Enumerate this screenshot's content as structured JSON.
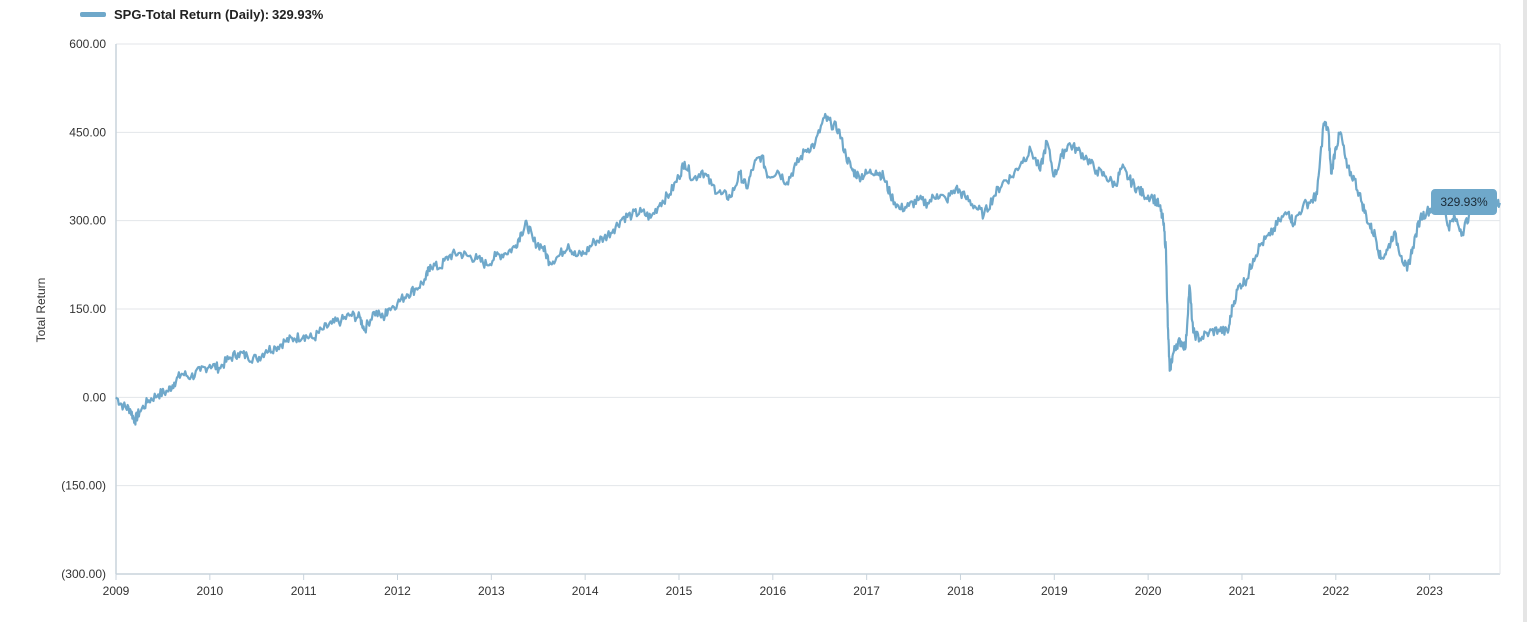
{
  "legend": {
    "series_name": "SPG-Total Return (Daily):",
    "value": "329.93%"
  },
  "colors": {
    "series": "#6fa8ca",
    "grid": "#e3e6ea",
    "axis": "#c8d3dc",
    "text": "#333333"
  },
  "chart_data": {
    "type": "line",
    "ylabel": "Total Return",
    "ylim": [
      -300,
      600
    ],
    "xlim": [
      2009.0,
      2023.75
    ],
    "y_ticks": [
      {
        "value": 600,
        "label": "600.00"
      },
      {
        "value": 450,
        "label": "450.00"
      },
      {
        "value": 300,
        "label": "300.00"
      },
      {
        "value": 150,
        "label": "150.00"
      },
      {
        "value": 0,
        "label": "0.00"
      },
      {
        "value": -150,
        "label": "(150.00)"
      },
      {
        "value": -300,
        "label": "(300.00)"
      }
    ],
    "x_ticks": [
      {
        "value": 2009,
        "label": "2009"
      },
      {
        "value": 2010,
        "label": "2010"
      },
      {
        "value": 2011,
        "label": "2011"
      },
      {
        "value": 2012,
        "label": "2012"
      },
      {
        "value": 2013,
        "label": "2013"
      },
      {
        "value": 2014,
        "label": "2014"
      },
      {
        "value": 2015,
        "label": "2015"
      },
      {
        "value": 2016,
        "label": "2016"
      },
      {
        "value": 2017,
        "label": "2017"
      },
      {
        "value": 2018,
        "label": "2018"
      },
      {
        "value": 2019,
        "label": "2019"
      },
      {
        "value": 2020,
        "label": "2020"
      },
      {
        "value": 2021,
        "label": "2021"
      },
      {
        "value": 2022,
        "label": "2022"
      },
      {
        "value": 2023,
        "label": "2023"
      }
    ],
    "grid": true,
    "legend_position": "top-left",
    "last_value_label": "329.93%",
    "series": [
      {
        "name": "SPG-Total Return (Daily)",
        "points": [
          [
            2009.0,
            0
          ],
          [
            2009.08,
            -15
          ],
          [
            2009.15,
            -20
          ],
          [
            2009.2,
            -40
          ],
          [
            2009.25,
            -25
          ],
          [
            2009.35,
            -5
          ],
          [
            2009.45,
            5
          ],
          [
            2009.55,
            10
          ],
          [
            2009.62,
            25
          ],
          [
            2009.7,
            40
          ],
          [
            2009.8,
            35
          ],
          [
            2009.9,
            45
          ],
          [
            2010.0,
            55
          ],
          [
            2010.1,
            50
          ],
          [
            2010.2,
            65
          ],
          [
            2010.3,
            75
          ],
          [
            2010.4,
            70
          ],
          [
            2010.5,
            65
          ],
          [
            2010.6,
            80
          ],
          [
            2010.7,
            85
          ],
          [
            2010.8,
            95
          ],
          [
            2010.9,
            100
          ],
          [
            2011.0,
            105
          ],
          [
            2011.1,
            100
          ],
          [
            2011.2,
            115
          ],
          [
            2011.3,
            125
          ],
          [
            2011.4,
            130
          ],
          [
            2011.5,
            140
          ],
          [
            2011.6,
            135
          ],
          [
            2011.65,
            115
          ],
          [
            2011.75,
            145
          ],
          [
            2011.85,
            135
          ],
          [
            2011.9,
            150
          ],
          [
            2012.0,
            160
          ],
          [
            2012.1,
            175
          ],
          [
            2012.2,
            185
          ],
          [
            2012.3,
            200
          ],
          [
            2012.35,
            225
          ],
          [
            2012.45,
            220
          ],
          [
            2012.55,
            240
          ],
          [
            2012.65,
            245
          ],
          [
            2012.75,
            240
          ],
          [
            2012.85,
            235
          ],
          [
            2012.95,
            225
          ],
          [
            2013.05,
            240
          ],
          [
            2013.15,
            245
          ],
          [
            2013.25,
            255
          ],
          [
            2013.32,
            280
          ],
          [
            2013.38,
            295
          ],
          [
            2013.45,
            265
          ],
          [
            2013.55,
            255
          ],
          [
            2013.62,
            230
          ],
          [
            2013.72,
            240
          ],
          [
            2013.82,
            260
          ],
          [
            2013.9,
            240
          ],
          [
            2014.0,
            245
          ],
          [
            2014.1,
            265
          ],
          [
            2014.2,
            270
          ],
          [
            2014.3,
            285
          ],
          [
            2014.4,
            305
          ],
          [
            2014.5,
            310
          ],
          [
            2014.6,
            315
          ],
          [
            2014.7,
            305
          ],
          [
            2014.8,
            330
          ],
          [
            2014.9,
            345
          ],
          [
            2015.0,
            375
          ],
          [
            2015.06,
            400
          ],
          [
            2015.15,
            370
          ],
          [
            2015.25,
            385
          ],
          [
            2015.35,
            360
          ],
          [
            2015.45,
            345
          ],
          [
            2015.55,
            340
          ],
          [
            2015.65,
            380
          ],
          [
            2015.72,
            355
          ],
          [
            2015.8,
            395
          ],
          [
            2015.88,
            410
          ],
          [
            2015.95,
            375
          ],
          [
            2016.05,
            385
          ],
          [
            2016.15,
            365
          ],
          [
            2016.25,
            395
          ],
          [
            2016.35,
            420
          ],
          [
            2016.45,
            430
          ],
          [
            2016.55,
            475
          ],
          [
            2016.62,
            465
          ],
          [
            2016.7,
            455
          ],
          [
            2016.78,
            410
          ],
          [
            2016.85,
            385
          ],
          [
            2016.92,
            375
          ],
          [
            2017.0,
            380
          ],
          [
            2017.1,
            385
          ],
          [
            2017.18,
            375
          ],
          [
            2017.25,
            345
          ],
          [
            2017.35,
            320
          ],
          [
            2017.45,
            325
          ],
          [
            2017.55,
            335
          ],
          [
            2017.65,
            330
          ],
          [
            2017.75,
            345
          ],
          [
            2017.85,
            335
          ],
          [
            2017.95,
            355
          ],
          [
            2018.05,
            340
          ],
          [
            2018.15,
            325
          ],
          [
            2018.25,
            310
          ],
          [
            2018.35,
            340
          ],
          [
            2018.45,
            365
          ],
          [
            2018.55,
            375
          ],
          [
            2018.65,
            400
          ],
          [
            2018.75,
            420
          ],
          [
            2018.85,
            385
          ],
          [
            2018.92,
            435
          ],
          [
            2019.0,
            375
          ],
          [
            2019.08,
            410
          ],
          [
            2019.15,
            430
          ],
          [
            2019.25,
            420
          ],
          [
            2019.35,
            405
          ],
          [
            2019.45,
            385
          ],
          [
            2019.55,
            375
          ],
          [
            2019.65,
            360
          ],
          [
            2019.72,
            390
          ],
          [
            2019.8,
            370
          ],
          [
            2019.88,
            355
          ],
          [
            2019.95,
            345
          ],
          [
            2020.05,
            340
          ],
          [
            2020.12,
            325
          ],
          [
            2020.16,
            300
          ],
          [
            2020.19,
            250
          ],
          [
            2020.21,
            120
          ],
          [
            2020.23,
            45
          ],
          [
            2020.26,
            70
          ],
          [
            2020.3,
            90
          ],
          [
            2020.35,
            95
          ],
          [
            2020.4,
            85
          ],
          [
            2020.44,
            190
          ],
          [
            2020.48,
            110
          ],
          [
            2020.55,
            100
          ],
          [
            2020.65,
            110
          ],
          [
            2020.75,
            115
          ],
          [
            2020.85,
            110
          ],
          [
            2020.9,
            155
          ],
          [
            2020.97,
            190
          ],
          [
            2021.05,
            200
          ],
          [
            2021.12,
            235
          ],
          [
            2021.2,
            260
          ],
          [
            2021.3,
            275
          ],
          [
            2021.4,
            300
          ],
          [
            2021.5,
            315
          ],
          [
            2021.55,
            295
          ],
          [
            2021.65,
            325
          ],
          [
            2021.75,
            335
          ],
          [
            2021.8,
            345
          ],
          [
            2021.87,
            465
          ],
          [
            2021.92,
            455
          ],
          [
            2021.95,
            380
          ],
          [
            2022.0,
            425
          ],
          [
            2022.05,
            450
          ],
          [
            2022.12,
            390
          ],
          [
            2022.2,
            370
          ],
          [
            2022.28,
            330
          ],
          [
            2022.35,
            295
          ],
          [
            2022.42,
            275
          ],
          [
            2022.48,
            235
          ],
          [
            2022.55,
            250
          ],
          [
            2022.62,
            280
          ],
          [
            2022.7,
            240
          ],
          [
            2022.76,
            215
          ],
          [
            2022.82,
            255
          ],
          [
            2022.9,
            305
          ],
          [
            2022.97,
            315
          ],
          [
            2023.05,
            325
          ],
          [
            2023.12,
            340
          ],
          [
            2023.2,
            290
          ],
          [
            2023.27,
            305
          ],
          [
            2023.35,
            280
          ],
          [
            2023.42,
            310
          ],
          [
            2023.5,
            330
          ],
          [
            2023.57,
            345
          ],
          [
            2023.64,
            320
          ],
          [
            2023.7,
            330
          ],
          [
            2023.75,
            329.93
          ]
        ]
      }
    ]
  }
}
